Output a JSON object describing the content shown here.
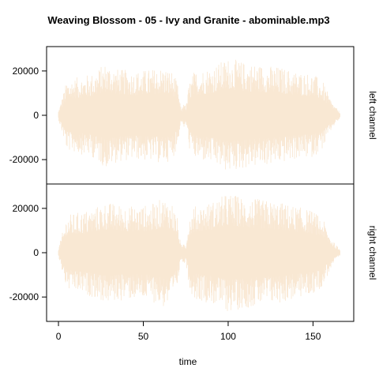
{
  "chart_data": {
    "type": "area",
    "title": "Weaving Blossom - 05 - Ivy and Granite - abominable.mp3",
    "xlabel": "time",
    "xlim": [
      -7,
      174
    ],
    "x_ticks": [
      0,
      50,
      100,
      150
    ],
    "x_tick_labels": [
      "0",
      "50",
      "100",
      "150"
    ],
    "y_ticks": [
      -20000,
      0,
      20000
    ],
    "y_tick_labels": [
      "-20000",
      "0",
      "20000"
    ],
    "color": "#f9e8d3",
    "panels": [
      {
        "label": "left channel",
        "ylim": [
          -31000,
          31000
        ],
        "envelope_x": [
          0,
          5,
          10,
          20,
          28,
          35,
          45,
          55,
          62,
          67,
          70,
          72,
          73,
          74,
          75,
          77,
          80,
          90,
          100,
          110,
          120,
          130,
          140,
          150,
          156,
          160,
          163,
          166
        ],
        "envelope_peak": [
          2000,
          16000,
          17000,
          19000,
          24000,
          21000,
          20000,
          21000,
          22000,
          20000,
          15000,
          4000,
          3000,
          8000,
          3000,
          15000,
          20000,
          22000,
          26000,
          24000,
          23000,
          22000,
          20000,
          19000,
          15000,
          8000,
          4000,
          1500
        ]
      },
      {
        "label": "right channel",
        "ylim": [
          -31000,
          31000
        ],
        "envelope_x": [
          0,
          5,
          10,
          20,
          28,
          35,
          45,
          55,
          62,
          67,
          70,
          72,
          73,
          74,
          75,
          77,
          80,
          90,
          100,
          110,
          120,
          130,
          140,
          150,
          156,
          160,
          163,
          166
        ],
        "envelope_peak": [
          2000,
          17000,
          18000,
          20000,
          23000,
          22000,
          21000,
          22000,
          25000,
          23000,
          16000,
          4000,
          3000,
          7000,
          3000,
          16000,
          21000,
          23000,
          27000,
          25000,
          24000,
          23000,
          21000,
          19000,
          15000,
          8000,
          4000,
          1500
        ]
      }
    ]
  }
}
